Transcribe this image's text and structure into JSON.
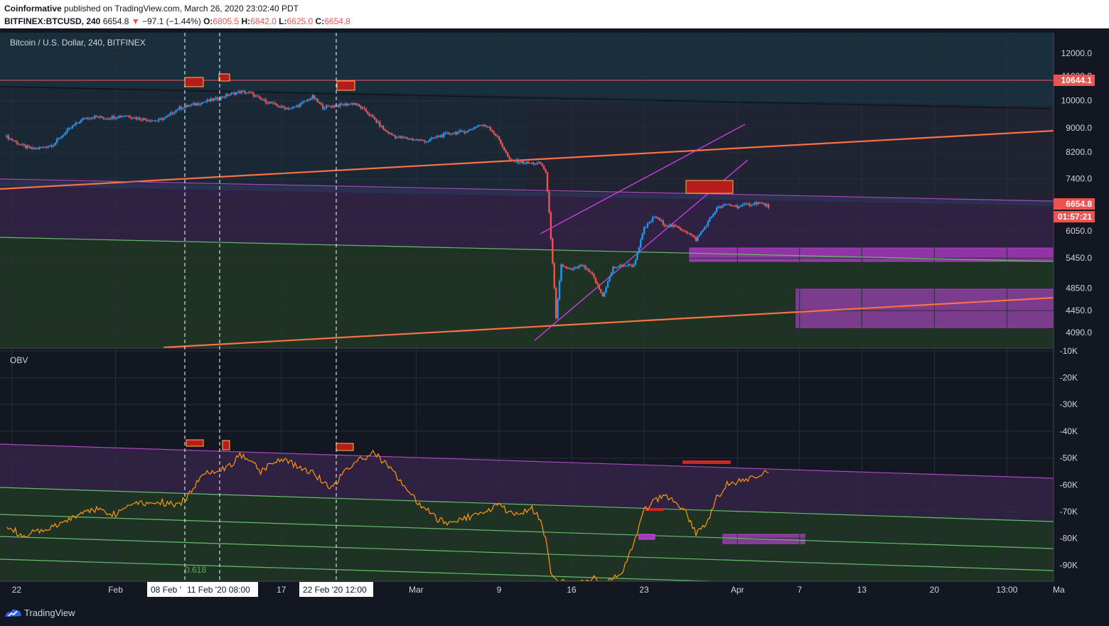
{
  "header": {
    "publisher": "Coinformative",
    "published_text": "published on TradingView.com, March 26, 2020 23:02:40 PDT",
    "symbol": "BITFINEX:BTCUSD, 240",
    "last": "6654.8",
    "change": "−97.1 (−1.44%)",
    "o_label": "O:",
    "o_value": "6805.5",
    "h_label": "H:",
    "h_value": "6842.0",
    "l_label": "L:",
    "l_value": "6625.0",
    "c_label": "C:",
    "c_value": "6654.8"
  },
  "main_pane": {
    "legend": "Bitcoin / U.S. Dollar, 240, BITFINEX",
    "resistance_label": "10644.1",
    "last_price_label": "6654.8",
    "countdown_label": "01:57:21"
  },
  "obv_pane": {
    "legend": "OBV",
    "fib_label": "0.618"
  },
  "crosshair_labels": [
    "08 Feb '",
    "11 Feb '20   08:00",
    "22 Feb '20   12:00"
  ],
  "footer": {
    "brand": "TradingView"
  },
  "colors": {
    "up": "#2196f3",
    "down": "#ef5350",
    "obv": "#ff9800",
    "orange_trend": "#ff7043",
    "magenta": "#e040fb",
    "green": "#66bb6a",
    "purple": "#ab47bc"
  },
  "chart_data": [
    {
      "type": "candlestick",
      "title": "Bitcoin / U.S. Dollar, 240, BITFINEX",
      "y_axis_ticks": [
        12000.0,
        11000.0,
        10000.0,
        9000.0,
        8200.0,
        7400.0,
        6650.0,
        6050.0,
        5450.0,
        4850.0,
        4450.0,
        4090.0
      ],
      "y_range": [
        3850,
        13000
      ],
      "y_scale": "log",
      "x_axis_ticks": [
        "22",
        "Feb",
        "17",
        "Mar",
        "9",
        "16",
        "23",
        "Apr",
        "7",
        "13",
        "20",
        "13:00",
        "Ma"
      ],
      "x_tick_days": [
        -9,
        1,
        17,
        30,
        38,
        45,
        52,
        61,
        67,
        73,
        80,
        87,
        92
      ],
      "x_range_days": [
        -9.6,
        91.5
      ],
      "x_day_zero": "2020-02-01",
      "horizontal_level": 10644.1,
      "last_price": 6654.8,
      "series_daily_close": [
        [
          -9.5,
          8700
        ],
        [
          -9,
          8600
        ],
        [
          -8,
          8400
        ],
        [
          -7,
          8300
        ],
        [
          -6,
          8350
        ],
        [
          -5,
          8450
        ],
        [
          -4,
          8800
        ],
        [
          -3,
          9100
        ],
        [
          -2,
          9350
        ],
        [
          -1,
          9400
        ],
        [
          0,
          9350
        ],
        [
          1,
          9400
        ],
        [
          2,
          9450
        ],
        [
          3,
          9350
        ],
        [
          4,
          9300
        ],
        [
          5,
          9250
        ],
        [
          6,
          9400
        ],
        [
          7,
          9700
        ],
        [
          8,
          9800
        ],
        [
          9,
          9900
        ],
        [
          10,
          10000
        ],
        [
          11,
          10100
        ],
        [
          12,
          10250
        ],
        [
          13,
          10350
        ],
        [
          14,
          10300
        ],
        [
          15,
          10050
        ],
        [
          16,
          9900
        ],
        [
          17,
          9750
        ],
        [
          18,
          9700
        ],
        [
          19,
          9900
        ],
        [
          20,
          10150
        ],
        [
          21,
          9750
        ],
        [
          22,
          9800
        ],
        [
          23,
          9850
        ],
        [
          24,
          9900
        ],
        [
          25,
          9650
        ],
        [
          26,
          9300
        ],
        [
          27,
          8900
        ],
        [
          28,
          8700
        ],
        [
          29,
          8650
        ],
        [
          30,
          8600
        ],
        [
          31,
          8550
        ],
        [
          32,
          8700
        ],
        [
          33,
          8800
        ],
        [
          34,
          8850
        ],
        [
          35,
          8900
        ],
        [
          36,
          9100
        ],
        [
          37,
          9050
        ],
        [
          38,
          8600
        ],
        [
          39,
          7950
        ],
        [
          40,
          7900
        ],
        [
          41,
          7850
        ],
        [
          42,
          7850
        ],
        [
          42.5,
          7600
        ],
        [
          43,
          5900
        ],
        [
          43.5,
          4300
        ],
        [
          44,
          5300
        ],
        [
          45,
          5200
        ],
        [
          46,
          5300
        ],
        [
          47,
          5100
        ],
        [
          48,
          4700
        ],
        [
          49,
          5250
        ],
        [
          50,
          5300
        ],
        [
          51,
          5300
        ],
        [
          52,
          6100
        ],
        [
          53,
          6400
        ],
        [
          54,
          6200
        ],
        [
          55,
          6150
        ],
        [
          56,
          6050
        ],
        [
          57,
          5850
        ],
        [
          58,
          6200
        ],
        [
          59,
          6600
        ],
        [
          60,
          6700
        ],
        [
          61,
          6650
        ],
        [
          62,
          6700
        ],
        [
          63,
          6750
        ],
        [
          64,
          6655
        ]
      ]
    },
    {
      "type": "line",
      "title": "OBV",
      "y_axis_ticks": [
        "-10K",
        "-20K",
        "-30K",
        "-40K",
        "-50K",
        "-60K",
        "-70K",
        "-80K",
        "-90K"
      ],
      "y_range": [
        -96000,
        -9000
      ],
      "series_daily": [
        [
          -9.5,
          -75000
        ],
        [
          -9,
          -76000
        ],
        [
          -8,
          -80000
        ],
        [
          -7,
          -78000
        ],
        [
          -6,
          -77000
        ],
        [
          -5,
          -76000
        ],
        [
          -4,
          -74000
        ],
        [
          -3,
          -72000
        ],
        [
          -2,
          -70000
        ],
        [
          -1,
          -69000
        ],
        [
          0,
          -70000
        ],
        [
          1,
          -71000
        ],
        [
          2,
          -68000
        ],
        [
          3,
          -66000
        ],
        [
          4,
          -67000
        ],
        [
          5,
          -66000
        ],
        [
          6,
          -67000
        ],
        [
          7,
          -68000
        ],
        [
          8,
          -64000
        ],
        [
          9,
          -58000
        ],
        [
          10,
          -55000
        ],
        [
          11,
          -54000
        ],
        [
          12,
          -53000
        ],
        [
          13,
          -49000
        ],
        [
          14,
          -50000
        ],
        [
          15,
          -55000
        ],
        [
          16,
          -52000
        ],
        [
          17,
          -50000
        ],
        [
          18,
          -52000
        ],
        [
          19,
          -54000
        ],
        [
          20,
          -55000
        ],
        [
          21,
          -59000
        ],
        [
          22,
          -61000
        ],
        [
          23,
          -55000
        ],
        [
          24,
          -52000
        ],
        [
          25,
          -50000
        ],
        [
          26,
          -48000
        ],
        [
          27,
          -52000
        ],
        [
          28,
          -56000
        ],
        [
          29,
          -61000
        ],
        [
          30,
          -66000
        ],
        [
          31,
          -69000
        ],
        [
          32,
          -73000
        ],
        [
          33,
          -74000
        ],
        [
          34,
          -73000
        ],
        [
          35,
          -72000
        ],
        [
          36,
          -71000
        ],
        [
          37,
          -69000
        ],
        [
          38,
          -68000
        ],
        [
          39,
          -70000
        ],
        [
          40,
          -72000
        ],
        [
          41,
          -68000
        ],
        [
          42,
          -73000
        ],
        [
          42.5,
          -80000
        ],
        [
          43,
          -93000
        ],
        [
          43.5,
          -96000
        ],
        [
          44,
          -96000
        ],
        [
          45,
          -97000
        ],
        [
          46,
          -96000
        ],
        [
          47,
          -95000
        ],
        [
          48,
          -96000
        ],
        [
          49,
          -95000
        ],
        [
          50,
          -92000
        ],
        [
          51,
          -82000
        ],
        [
          52,
          -70000
        ],
        [
          53,
          -66000
        ],
        [
          54,
          -64000
        ],
        [
          55,
          -67000
        ],
        [
          56,
          -70000
        ],
        [
          57,
          -78000
        ],
        [
          58,
          -75000
        ],
        [
          59,
          -65000
        ],
        [
          60,
          -60000
        ],
        [
          61,
          -59000
        ],
        [
          62,
          -58000
        ],
        [
          63,
          -56000
        ],
        [
          64,
          -55000
        ]
      ]
    }
  ]
}
